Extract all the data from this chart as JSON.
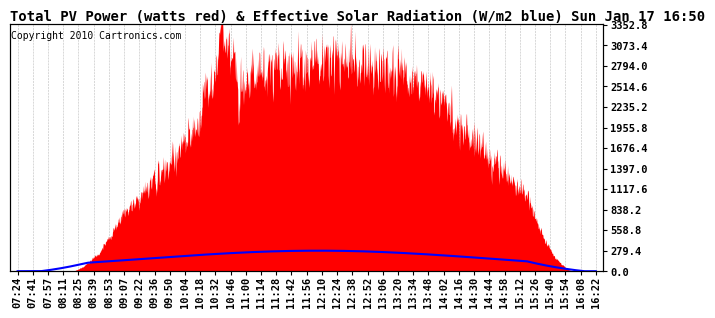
{
  "title": "Total PV Power (watts red) & Effective Solar Radiation (W/m2 blue) Sun Jan 17 16:50",
  "copyright_text": "Copyright 2010 Cartronics.com",
  "background_color": "#ffffff",
  "plot_bg_color": "#ffffff",
  "grid_color": "#aaaaaa",
  "red_color": "#ff0000",
  "blue_color": "#0000ff",
  "y_max": 3352.8,
  "y_min": 0.0,
  "y_tick_interval": 279.4,
  "x_labels": [
    "07:24",
    "07:41",
    "07:57",
    "08:11",
    "08:25",
    "08:39",
    "08:53",
    "09:07",
    "09:22",
    "09:36",
    "09:50",
    "10:04",
    "10:18",
    "10:32",
    "10:46",
    "11:00",
    "11:14",
    "11:28",
    "11:42",
    "11:56",
    "12:10",
    "12:24",
    "12:38",
    "12:52",
    "13:06",
    "13:20",
    "13:34",
    "13:48",
    "14:02",
    "14:16",
    "14:30",
    "14:44",
    "14:58",
    "15:12",
    "15:26",
    "15:40",
    "15:54",
    "16:08",
    "16:22"
  ],
  "title_fontsize": 10,
  "copyright_fontsize": 7,
  "tick_fontsize": 7.5,
  "x_label_start_idx": 0,
  "pv_peak_watts": 3352.8,
  "solar_peak_wm2": 279.4
}
